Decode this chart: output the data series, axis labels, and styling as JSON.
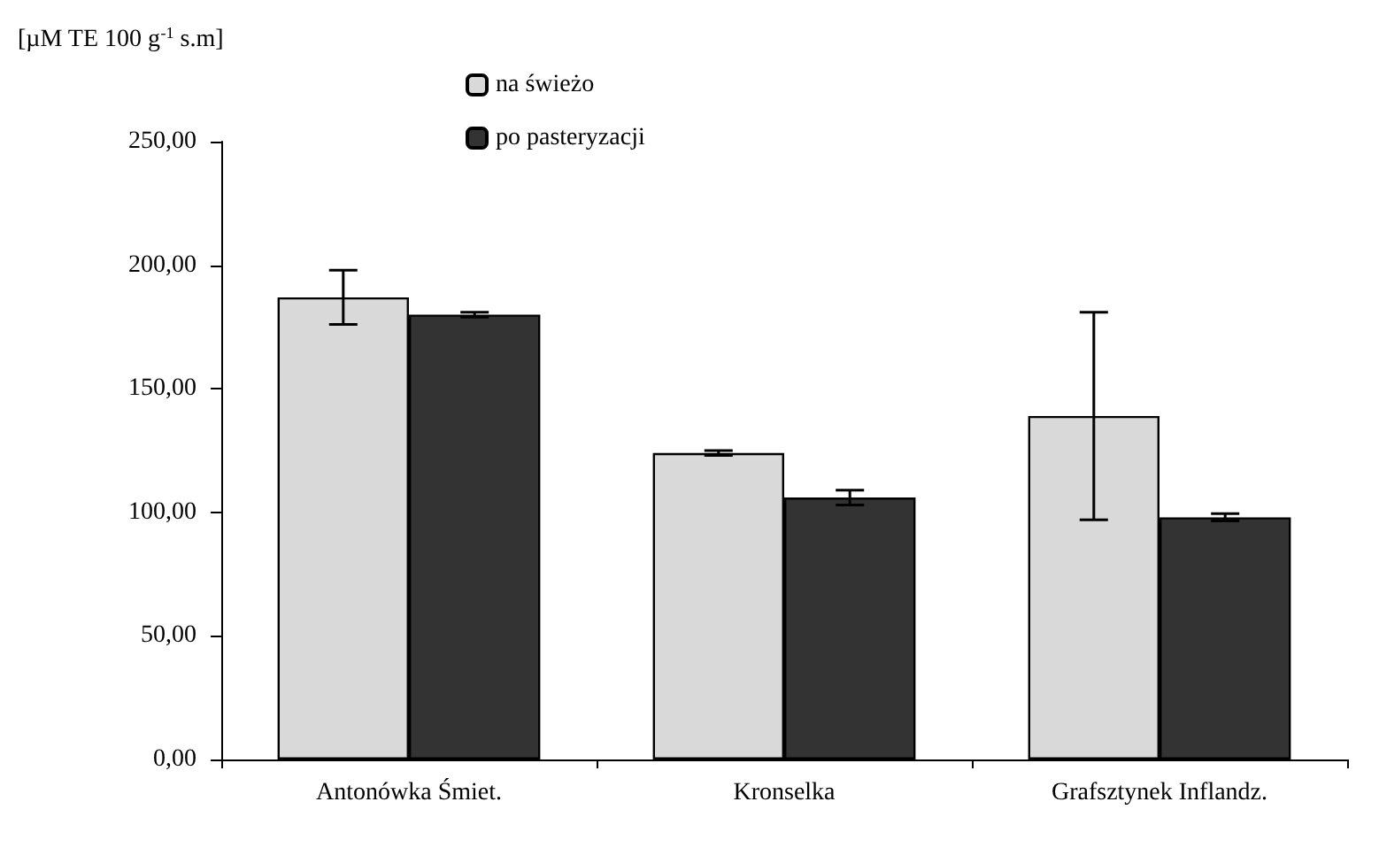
{
  "chart_data": {
    "type": "bar",
    "ylabel": "[µM TE 100 g$^{-1}$ s.m]",
    "categories": [
      "Antonówka Śmiet.",
      "Kronselka",
      "Grafsztynek Inflandz."
    ],
    "series": [
      {
        "name": "na świeżo",
        "color": "#d9d9d9",
        "values": [
          187,
          124,
          139
        ],
        "errors": [
          11,
          1,
          42
        ]
      },
      {
        "name": "po pasteryzacji",
        "color": "#333333",
        "values": [
          180,
          106,
          98
        ],
        "errors": [
          1,
          3,
          1.5
        ]
      }
    ],
    "ylim": [
      0,
      250
    ],
    "yticks": [
      {
        "value": 0,
        "label": "0,00"
      },
      {
        "value": 50,
        "label": "50,00"
      },
      {
        "value": 100,
        "label": "100,00"
      },
      {
        "value": 150,
        "label": "150,00"
      },
      {
        "value": 200,
        "label": "200,00"
      },
      {
        "value": 250,
        "label": "250,00"
      }
    ],
    "grid": false,
    "legend": "top"
  }
}
